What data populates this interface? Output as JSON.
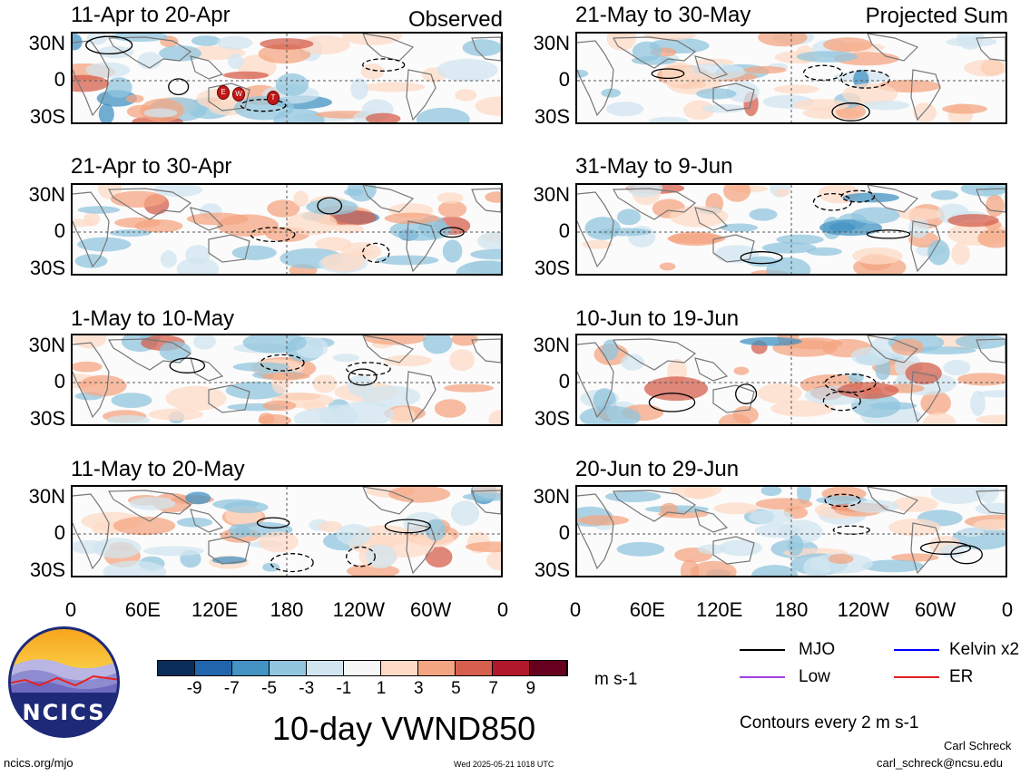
{
  "left_header": "Observed",
  "right_header": "Projected Sum",
  "left_panels": [
    {
      "title": "11-Apr to 20-Apr"
    },
    {
      "title": "21-Apr to 30-Apr"
    },
    {
      "title": "1-May to 10-May"
    },
    {
      "title": "11-May to 20-May"
    }
  ],
  "right_panels": [
    {
      "title": "21-May to 30-May"
    },
    {
      "title": "31-May to 9-Jun"
    },
    {
      "title": "10-Jun to 19-Jun"
    },
    {
      "title": "20-Jun to 29-Jun"
    }
  ],
  "lat_labels": [
    "30N",
    "0",
    "30S"
  ],
  "lon_labels": [
    "0",
    "60E",
    "120E",
    "180",
    "120W",
    "60W",
    "0"
  ],
  "colorbar": {
    "labels": [
      "-9",
      "-7",
      "-5",
      "-3",
      "-1",
      "1",
      "3",
      "5",
      "7",
      "9"
    ],
    "colors": [
      "#0b2d5a",
      "#2166ac",
      "#4393c3",
      "#92c5de",
      "#d1e5f0",
      "#f7f7f7",
      "#fddbc7",
      "#f4a582",
      "#d6604d",
      "#b2182b",
      "#67001f"
    ],
    "units": "m s-1"
  },
  "main_title": "10-day VWND850",
  "legend": {
    "mjo": "MJO",
    "kelvin": "Kelvin x2",
    "low": "Low",
    "er": "ER",
    "mjo_color": "#000000",
    "kelvin_color": "#0000ff",
    "low_color": "#a040e0",
    "er_color": "#e02020"
  },
  "contours_note": "Contours every 2 m s-1",
  "logo_text": "NCICS",
  "footer": {
    "url": "ncics.org/mjo",
    "timestamp": "Wed 2025-05-21 1018 UTC",
    "author": "Carl Schreck",
    "email": "carl_schreck@ncsu.edu"
  },
  "storm_markers": [
    "E",
    "W",
    "T"
  ]
}
